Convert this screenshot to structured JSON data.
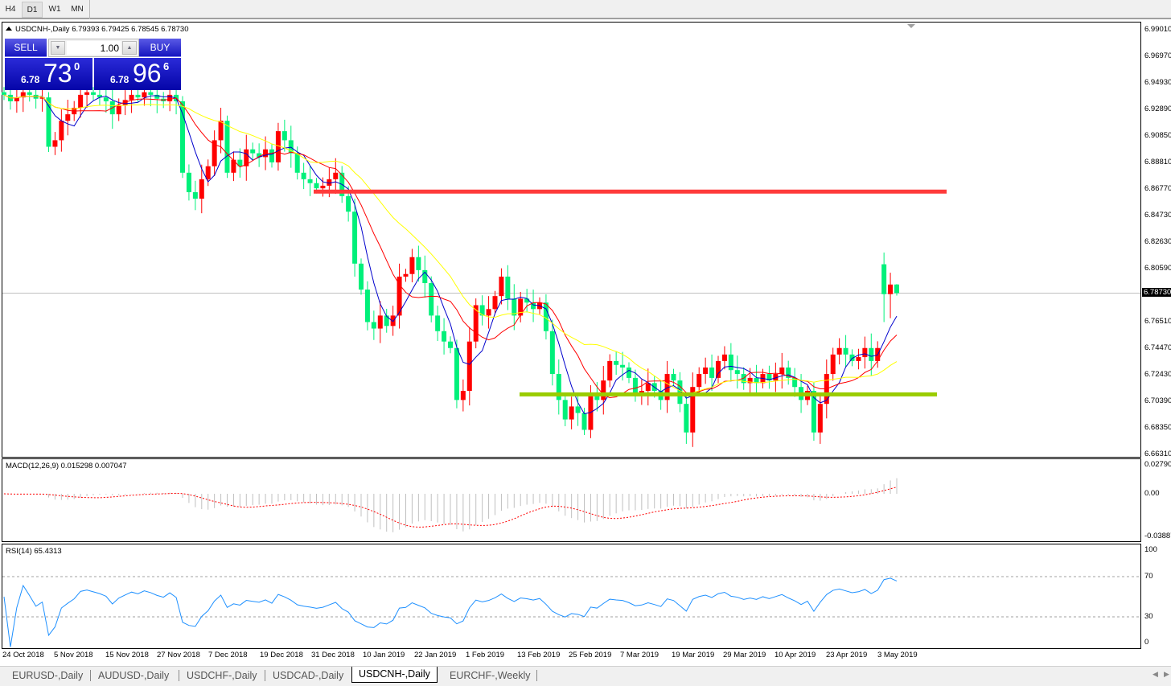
{
  "toolbar": {
    "timeframes": [
      {
        "label": "H4",
        "active": false
      },
      {
        "label": "D1",
        "active": true
      },
      {
        "label": "W1",
        "active": false
      },
      {
        "label": "MN",
        "active": false
      }
    ]
  },
  "chart": {
    "title": "USDCNH-,Daily  6.79393 6.79425 6.78545 6.78730",
    "current_price": "6.78730",
    "price_axis": [
      "6.99010",
      "6.96970",
      "6.94930",
      "6.92890",
      "6.90850",
      "6.88810",
      "6.86770",
      "6.84730",
      "6.82630",
      "6.80590",
      "6.76510",
      "6.74470",
      "6.72430",
      "6.70390",
      "6.68350",
      "6.66310"
    ],
    "macd_axis": [
      "0.027900",
      "0.00",
      "-0.038877"
    ],
    "rsi_axis": [
      "100",
      "70",
      "30",
      "0"
    ],
    "macd_label": "MACD(12,26,9) 0.015298 0.007047",
    "rsi_label": "RSI(14) 65.4313",
    "dates": [
      "24 Oct 2018",
      "5 Nov 2018",
      "15 Nov 2018",
      "27 Nov 2018",
      "7 Dec 2018",
      "19 Dec 2018",
      "31 Dec 2018",
      "10 Jan 2019",
      "22 Jan 2019",
      "1 Feb 2019",
      "13 Feb 2019",
      "25 Feb 2019",
      "7 Mar 2019",
      "19 Mar 2019",
      "29 Mar 2019",
      "10 Apr 2019",
      "23 Apr 2019",
      "3 May 2019"
    ]
  },
  "trade_panel": {
    "sell_label": "SELL",
    "buy_label": "BUY",
    "lot": "1.00",
    "bid_prefix": "6.78",
    "bid_big": "73",
    "bid_sup": "0",
    "ask_prefix": "6.78",
    "ask_big": "96",
    "ask_sup": "6"
  },
  "tabs": [
    {
      "label": "EURUSD-,Daily",
      "active": false
    },
    {
      "label": "AUDUSD-,Daily",
      "active": false
    },
    {
      "label": "USDCHF-,Daily",
      "active": false
    },
    {
      "label": "USDCAD-,Daily",
      "active": false
    },
    {
      "label": "USDCNH-,Daily",
      "active": true
    },
    {
      "label": "EURCHF-,Weekly",
      "active": false
    }
  ],
  "chart_data": {
    "type": "candlestick",
    "symbol": "USDCNH-",
    "ylim": [
      6.6631,
      6.9901
    ],
    "bullish_color": "#ff0000",
    "bearish_color": "#00f07a",
    "ma_colors": [
      "#0000cc",
      "#ff0000",
      "#ffff00"
    ],
    "closes": [
      6.94,
      6.935,
      6.938,
      6.942,
      6.94,
      6.937,
      6.938,
      6.9,
      6.905,
      6.92,
      6.925,
      6.93,
      6.94,
      6.942,
      6.94,
      6.938,
      6.935,
      6.925,
      6.932,
      6.936,
      6.94,
      6.938,
      6.942,
      6.94,
      6.937,
      6.935,
      6.94,
      6.935,
      6.88,
      6.865,
      6.86,
      6.875,
      6.885,
      6.905,
      6.92,
      6.88,
      6.89,
      6.885,
      6.898,
      6.895,
      6.892,
      6.898,
      6.888,
      6.912,
      6.905,
      6.895,
      6.88,
      6.875,
      6.872,
      6.868,
      6.87,
      6.875,
      6.88,
      6.862,
      6.85,
      6.81,
      6.79,
      6.765,
      6.76,
      6.77,
      6.762,
      6.77,
      6.8,
      6.802,
      6.815,
      6.805,
      6.795,
      6.77,
      6.758,
      6.75,
      6.745,
      6.705,
      6.712,
      6.75,
      6.778,
      6.77,
      6.775,
      6.785,
      6.8,
      6.783,
      6.77,
      6.783,
      6.78,
      6.775,
      6.78,
      6.758,
      6.725,
      6.705,
      6.69,
      6.7,
      6.695,
      6.682,
      6.71,
      6.705,
      6.72,
      6.735,
      6.732,
      6.73,
      6.722,
      6.71,
      6.712,
      6.718,
      6.712,
      6.705,
      6.725,
      6.72,
      6.702,
      6.68,
      6.715,
      6.725,
      6.73,
      6.722,
      6.735,
      6.74,
      6.728,
      6.725,
      6.718,
      6.722,
      6.718,
      6.725,
      6.72,
      6.725,
      6.73,
      6.722,
      6.715,
      6.705,
      6.712,
      6.68,
      6.702,
      6.725,
      6.74,
      6.745,
      6.74,
      6.735,
      6.738,
      6.745,
      6.735,
      6.745,
      6.7865,
      6.7939,
      6.7873
    ],
    "last_candles_ohlc": [
      [
        6.8095,
        6.8185,
        6.765,
        6.7865
      ],
      [
        6.7865,
        6.803,
        6.768,
        6.7939
      ],
      [
        6.79393,
        6.79425,
        6.78545,
        6.7873
      ]
    ],
    "horizontal_lines": [
      {
        "price": 6.8655,
        "color": "#ff3b3b"
      },
      {
        "price": 6.7093,
        "color": "#99cc00"
      }
    ],
    "rsi_levels": [
      70,
      30
    ]
  }
}
